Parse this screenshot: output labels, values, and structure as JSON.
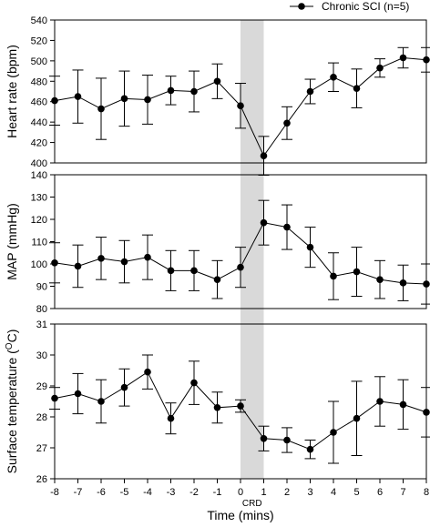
{
  "chart_data": {
    "type": "line",
    "legend": {
      "label": "Chronic SCI (n=5)",
      "position": "top-right"
    },
    "shaded_region": {
      "x_start": 0,
      "x_end": 1,
      "label": "CRD",
      "color": "#d9d9d9"
    },
    "x": [
      -8,
      -7,
      -6,
      -5,
      -4,
      -3,
      -2,
      -1,
      0,
      1,
      2,
      3,
      4,
      5,
      6,
      7,
      8
    ],
    "xlabel": "Time (mins)",
    "xlim": [
      -8,
      8
    ],
    "x_ticks": [
      "-8",
      "-7",
      "-6",
      "-5",
      "-4",
      "-3",
      "-2",
      "-1",
      "0",
      "1",
      "2",
      "3",
      "4",
      "5",
      "6",
      "7",
      "8"
    ],
    "panels": [
      {
        "ylabel": "Heart rate (bpm)",
        "ylim": [
          400,
          540
        ],
        "y_ticks": [
          "400",
          "420",
          "440",
          "460",
          "480",
          "500",
          "520",
          "540"
        ],
        "values": [
          461,
          465,
          453,
          463,
          462,
          471,
          470,
          480,
          456,
          407,
          439,
          470,
          484,
          473,
          493,
          503,
          501
        ],
        "errors": [
          24,
          26,
          30,
          27,
          24,
          14,
          20,
          17,
          22,
          19,
          16,
          12,
          14,
          19,
          9,
          10,
          12
        ]
      },
      {
        "ylabel": "MAP (mmHg)",
        "ylim": [
          80,
          140
        ],
        "y_ticks": [
          "80",
          "90",
          "100",
          "110",
          "120",
          "130",
          "140"
        ],
        "values": [
          100.5,
          99,
          102.5,
          101,
          103,
          97,
          97,
          93,
          98.5,
          118.5,
          116.5,
          107.5,
          94.5,
          96.5,
          93,
          91.5,
          91
        ],
        "errors": [
          9,
          9.5,
          9.5,
          9.5,
          10,
          9,
          9,
          8.5,
          9,
          10,
          10,
          9,
          10.5,
          11,
          8.5,
          8,
          9
        ]
      },
      {
        "ylabel": "Surface temperature (",
        "ylabel_sup": "O",
        "ylabel_tail": "C)",
        "ylim": [
          26,
          31
        ],
        "y_ticks": [
          "26",
          "27",
          "28",
          "29",
          "30",
          "31"
        ],
        "values": [
          28.6,
          28.75,
          28.5,
          28.95,
          29.45,
          27.95,
          29.1,
          28.3,
          28.35,
          27.3,
          27.25,
          26.95,
          27.5,
          27.95,
          28.5,
          28.4,
          28.15
        ],
        "errors": [
          0.35,
          0.65,
          0.7,
          0.6,
          0.55,
          0.5,
          0.7,
          0.5,
          0.2,
          0.4,
          0.4,
          0.3,
          1.0,
          1.2,
          0.8,
          0.8,
          0.8
        ]
      }
    ]
  }
}
